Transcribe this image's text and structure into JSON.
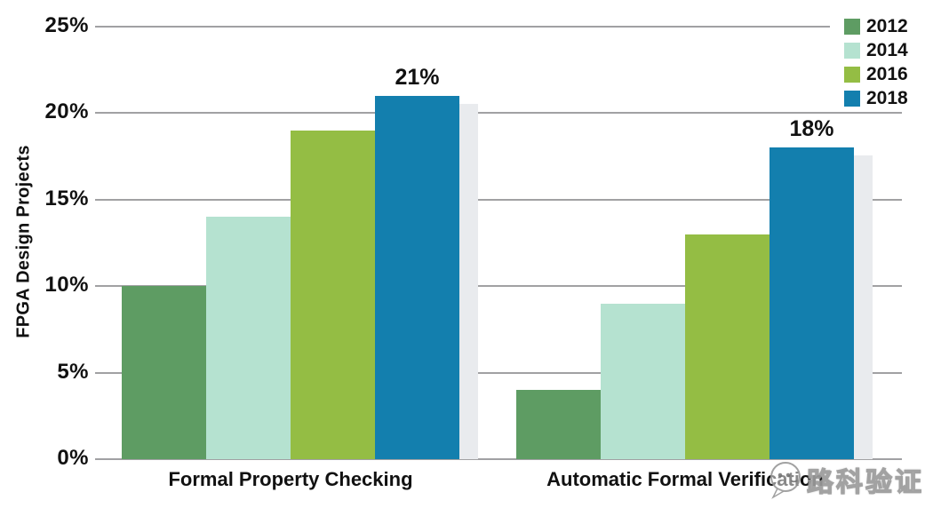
{
  "chart_data": {
    "type": "bar",
    "title": "",
    "xlabel": "",
    "ylabel": "FPGA Design Projects",
    "ylim": [
      0,
      25
    ],
    "yticks": [
      0,
      5,
      10,
      15,
      20,
      25
    ],
    "ytick_labels": [
      "0%",
      "5%",
      "10%",
      "15%",
      "20%",
      "25%"
    ],
    "grid": "horizontal",
    "gridline_color": "#a1a1a3",
    "legend_position": "top-right",
    "categories": [
      "Formal Property Checking",
      "Automatic Formal Verification"
    ],
    "series": [
      {
        "name": "2012",
        "color": "#5e9c63",
        "values": [
          10,
          4
        ]
      },
      {
        "name": "2014",
        "color": "#b5e2d0",
        "values": [
          14,
          9
        ]
      },
      {
        "name": "2016",
        "color": "#94bd44",
        "values": [
          19,
          13
        ]
      },
      {
        "name": "2018",
        "color": "#137fae",
        "values": [
          21,
          18
        ]
      }
    ],
    "annotations": [
      {
        "text": "21%",
        "series": "2018",
        "category": "Formal Property Checking"
      },
      {
        "text": "18%",
        "series": "2018",
        "category": "Automatic Formal Verification"
      }
    ]
  },
  "watermark": {
    "text": "路科验证",
    "logo": "chat-bubble-face-icon"
  }
}
